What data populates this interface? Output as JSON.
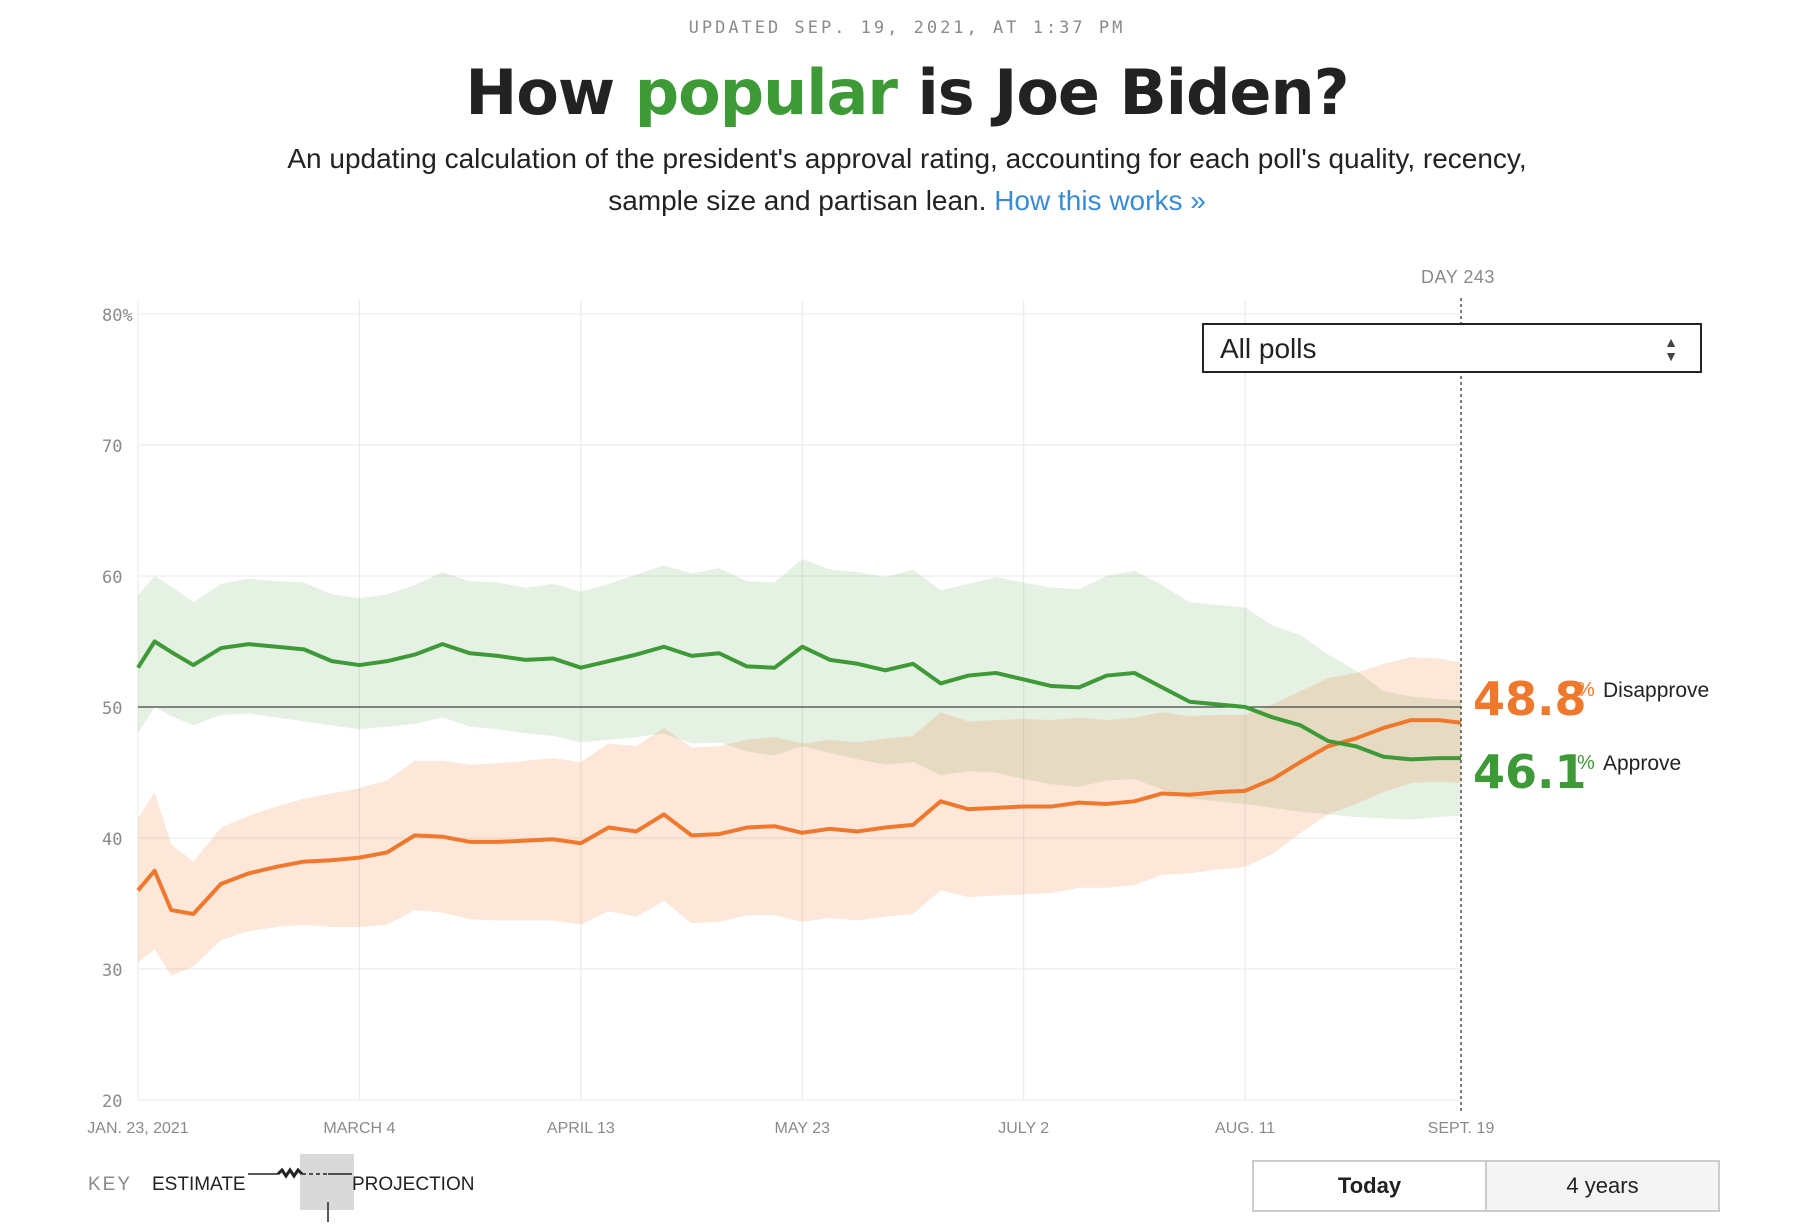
{
  "header": {
    "updated": "UPDATED SEP. 19, 2021, AT 1:37 PM",
    "title_pre": "How ",
    "title_highlight": "popular",
    "title_post": " is Joe Biden?",
    "subtitle": "An updating calculation of the president's approval rating, accounting for each poll's quality, recency, sample size and partisan lean.",
    "link": "How this works »"
  },
  "controls": {
    "poll_select": "All polls",
    "day_label": "DAY 243",
    "toggle_today": "Today",
    "toggle_years": "4 years"
  },
  "key": {
    "label": "KEY",
    "estimate": "ESTIMATE",
    "projection": "PROJECTION"
  },
  "colors": {
    "approve": "#3d9a36",
    "disapprove": "#f0782d",
    "approve_band": "#e3f0df",
    "disapprove_band": "#fde5d9",
    "grid": "#e8e8e8",
    "link": "#3a8bd6"
  },
  "chart_data": {
    "type": "line",
    "title": "How popular is Joe Biden?",
    "xlabel": "",
    "ylabel": "%",
    "ylim": [
      20,
      80
    ],
    "xlim_days": [
      0,
      239
    ],
    "y_ticks": [
      "80%",
      "70",
      "60",
      "50",
      "40",
      "30",
      "20"
    ],
    "y_tick_values": [
      80,
      70,
      60,
      50,
      40,
      30,
      20
    ],
    "x_ticks": [
      "JAN. 23, 2021",
      "MARCH 4",
      "APRIL 13",
      "MAY 23",
      "JULY 2",
      "AUG. 11",
      "SEPT. 19"
    ],
    "x_tick_days": [
      0,
      40,
      80,
      120,
      160,
      200,
      239
    ],
    "reference_line": 50,
    "today_day": 239,
    "series": [
      {
        "name": "Approve",
        "final_value": "46.1",
        "final_label": "Approve",
        "days": [
          0,
          3,
          6,
          10,
          15,
          20,
          25,
          30,
          35,
          40,
          45,
          50,
          55,
          60,
          65,
          70,
          75,
          80,
          85,
          90,
          95,
          100,
          105,
          110,
          115,
          120,
          125,
          130,
          135,
          140,
          145,
          150,
          155,
          160,
          165,
          170,
          175,
          180,
          185,
          190,
          195,
          200,
          205,
          210,
          215,
          220,
          225,
          230,
          235,
          239
        ],
        "values": [
          53.0,
          55.0,
          54.2,
          53.2,
          54.5,
          54.8,
          54.6,
          54.4,
          53.5,
          53.2,
          53.5,
          54.0,
          54.8,
          54.1,
          53.9,
          53.6,
          53.7,
          53.0,
          53.5,
          54.0,
          54.6,
          53.9,
          54.1,
          53.1,
          53.0,
          54.6,
          53.6,
          53.3,
          52.8,
          53.3,
          51.8,
          52.4,
          52.6,
          52.1,
          51.6,
          51.5,
          52.4,
          52.6,
          51.5,
          50.4,
          50.2,
          50.0,
          49.2,
          48.6,
          47.4,
          47.0,
          46.2,
          46.0,
          46.1,
          46.1
        ],
        "band_low": [
          48.0,
          50.0,
          49.3,
          48.6,
          49.4,
          49.5,
          49.2,
          48.9,
          48.6,
          48.3,
          48.5,
          48.7,
          49.2,
          48.5,
          48.3,
          48.0,
          47.8,
          47.3,
          47.5,
          47.7,
          48.0,
          47.2,
          47.3,
          46.6,
          46.3,
          47.0,
          46.5,
          46.0,
          45.6,
          45.8,
          44.8,
          45.1,
          45.0,
          44.5,
          44.1,
          43.9,
          44.4,
          44.5,
          43.7,
          43.0,
          42.8,
          42.6,
          42.3,
          42.0,
          41.8,
          41.6,
          41.5,
          41.4,
          41.6,
          41.7
        ],
        "band_high": [
          58.5,
          60.0,
          59.2,
          58.0,
          59.4,
          59.8,
          59.6,
          59.5,
          58.6,
          58.3,
          58.6,
          59.3,
          60.3,
          59.6,
          59.5,
          59.1,
          59.4,
          58.8,
          59.4,
          60.1,
          60.8,
          60.2,
          60.6,
          59.6,
          59.5,
          61.3,
          60.5,
          60.3,
          59.9,
          60.5,
          58.9,
          59.4,
          59.9,
          59.5,
          59.1,
          59.0,
          60.0,
          60.4,
          59.3,
          58.0,
          57.8,
          57.6,
          56.2,
          55.5,
          54.0,
          52.8,
          51.2,
          50.8,
          50.6,
          50.5
        ]
      },
      {
        "name": "Disapprove",
        "final_value": "48.8",
        "final_label": "Disapprove",
        "days": [
          0,
          3,
          6,
          10,
          15,
          20,
          25,
          30,
          35,
          40,
          45,
          50,
          55,
          60,
          65,
          70,
          75,
          80,
          85,
          90,
          95,
          100,
          105,
          110,
          115,
          120,
          125,
          130,
          135,
          140,
          145,
          150,
          155,
          160,
          165,
          170,
          175,
          180,
          185,
          190,
          195,
          200,
          205,
          210,
          215,
          220,
          225,
          230,
          235,
          239
        ],
        "values": [
          36.0,
          37.5,
          34.5,
          34.2,
          36.5,
          37.3,
          37.8,
          38.2,
          38.3,
          38.5,
          38.9,
          40.2,
          40.1,
          39.7,
          39.7,
          39.8,
          39.9,
          39.6,
          40.8,
          40.5,
          41.8,
          40.2,
          40.3,
          40.8,
          40.9,
          40.4,
          40.7,
          40.5,
          40.8,
          41.0,
          42.8,
          42.2,
          42.3,
          42.4,
          42.4,
          42.7,
          42.6,
          42.8,
          43.4,
          43.3,
          43.5,
          43.6,
          44.5,
          45.8,
          47.0,
          47.6,
          48.4,
          49.0,
          49.0,
          48.8
        ],
        "band_low": [
          30.5,
          31.5,
          29.5,
          30.2,
          32.2,
          32.9,
          33.2,
          33.4,
          33.2,
          33.2,
          33.4,
          34.5,
          34.3,
          33.8,
          33.7,
          33.7,
          33.7,
          33.4,
          34.4,
          34.0,
          35.2,
          33.5,
          33.6,
          34.1,
          34.1,
          33.6,
          33.9,
          33.7,
          34.0,
          34.2,
          36.0,
          35.5,
          35.6,
          35.7,
          35.8,
          36.2,
          36.2,
          36.4,
          37.2,
          37.3,
          37.6,
          37.8,
          38.8,
          40.4,
          41.8,
          42.6,
          43.5,
          44.2,
          44.3,
          44.2
        ],
        "band_high": [
          41.5,
          43.5,
          39.5,
          38.2,
          40.8,
          41.7,
          42.4,
          43.0,
          43.4,
          43.8,
          44.4,
          45.9,
          45.9,
          45.6,
          45.7,
          45.9,
          46.1,
          45.8,
          47.2,
          47.0,
          48.4,
          46.9,
          47.0,
          47.5,
          47.7,
          47.2,
          47.5,
          47.3,
          47.6,
          47.8,
          49.6,
          48.9,
          49.0,
          49.1,
          49.0,
          49.2,
          49.0,
          49.2,
          49.6,
          49.3,
          49.4,
          49.4,
          50.2,
          51.2,
          52.2,
          52.6,
          53.3,
          53.8,
          53.7,
          53.4
        ]
      }
    ]
  }
}
